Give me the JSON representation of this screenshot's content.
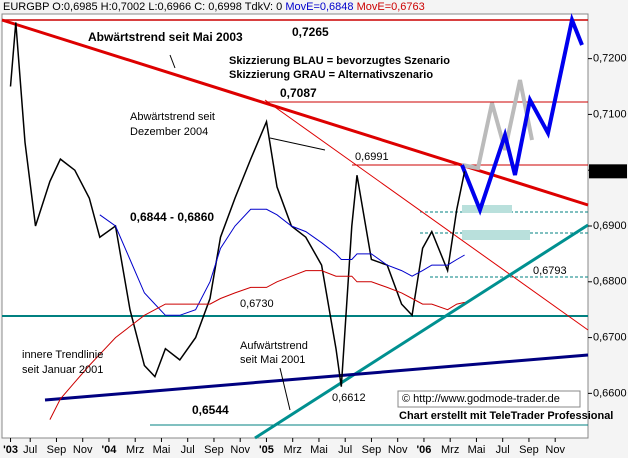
{
  "chart_data": {
    "type": "line",
    "header": [
      "EURGBP O:0,6985 H:0,7002 L:0,6966 C: 0,6998 TdkV: 0",
      "MovE=0,6848",
      "MovE=0,6763"
    ],
    "last_price_label": "0,6998",
    "annotations": [
      "Abwärtstrend seit Mai 2003",
      "0,7265",
      "0,7087",
      "Abwärtstrend seit",
      "Dezember 2004",
      "0,6991",
      "Skizzierung BLAU = bevorzugtes Szenario",
      "Skizzierung GRAU = Alternativszenario",
      "0,6844 - 0,6860",
      "0,6793",
      "0,6730",
      "Aufwärtstrend",
      "seit Mai 2001",
      "innere Trendlinie",
      "seit Januar 2001",
      "0,6612",
      "0,6544",
      "© http://www.godmode-trader.de",
      "Chart erstellt mit TeleTrader Professional"
    ],
    "x": [
      4.5,
      4.9,
      5.6,
      6.4,
      7.5,
      8.3,
      9.4,
      10.5,
      11.3,
      12.5,
      13.6,
      14.7,
      15.5,
      16.3,
      17.4,
      18.6,
      19.7,
      20.5,
      21.6,
      22.8,
      24,
      24.8,
      25.9,
      27,
      28.2,
      29.3,
      29.7,
      30.5,
      30.9,
      32,
      33.2,
      34.3,
      35.1,
      35.9,
      36.6,
      37.8,
      38.5,
      39.1
    ],
    "series": [
      {
        "name": "EURGBP",
        "color": "#000000",
        "values": [
          0.715,
          0.7265,
          0.705,
          0.69,
          0.698,
          0.702,
          0.7,
          0.695,
          0.688,
          0.69,
          0.675,
          0.665,
          0.663,
          0.668,
          0.666,
          0.67,
          0.677,
          0.688,
          0.695,
          0.702,
          0.7087,
          0.697,
          0.69,
          0.688,
          0.683,
          0.668,
          0.6612,
          0.69,
          0.6991,
          0.684,
          0.683,
          0.676,
          0.674,
          0.686,
          0.689,
          0.682,
          0.693,
          0.6998
        ]
      },
      {
        "name": "MovE blau",
        "color": "#0000cc",
        "values": [
          null,
          null,
          null,
          null,
          null,
          null,
          null,
          null,
          0.692,
          0.69,
          0.684,
          0.678,
          0.676,
          0.674,
          0.674,
          0.675,
          0.68,
          0.686,
          0.69,
          0.693,
          0.693,
          0.692,
          0.69,
          0.689,
          0.687,
          0.685,
          0.684,
          0.684,
          0.685,
          0.685,
          0.683,
          0.682,
          0.681,
          0.682,
          0.683,
          0.683,
          0.684,
          0.6848
        ]
      },
      {
        "name": "MovE rot",
        "color": "#cc0000",
        "values": [
          null,
          null,
          null,
          null,
          0.6553,
          0.659,
          0.662,
          0.665,
          0.667,
          0.67,
          0.672,
          0.674,
          0.675,
          0.676,
          0.676,
          0.676,
          0.676,
          0.677,
          0.678,
          0.679,
          0.679,
          0.68,
          0.681,
          0.682,
          0.682,
          0.681,
          0.681,
          0.681,
          0.68,
          0.68,
          0.679,
          0.678,
          0.677,
          0.676,
          0.676,
          0.675,
          0.676,
          0.6763
        ]
      }
    ],
    "xlim": [
      3.85,
      48.5
    ],
    "xticks": [
      {
        "value": 4.5,
        "label": "'03"
      },
      {
        "value": 6,
        "label": "Jul"
      },
      {
        "value": 8,
        "label": "Sep"
      },
      {
        "value": 10,
        "label": "Nov"
      },
      {
        "value": 12,
        "label": "'04"
      },
      {
        "value": 14,
        "label": "Mrz"
      },
      {
        "value": 16,
        "label": "Mai"
      },
      {
        "value": 18,
        "label": "Jul"
      },
      {
        "value": 20,
        "label": "Sep"
      },
      {
        "value": 22,
        "label": "Nov"
      },
      {
        "value": 24,
        "label": "'05"
      },
      {
        "value": 26,
        "label": "Mrz"
      },
      {
        "value": 28,
        "label": "Mai"
      },
      {
        "value": 30,
        "label": "Jul"
      },
      {
        "value": 32,
        "label": "Sep"
      },
      {
        "value": 34,
        "label": "Nov"
      },
      {
        "value": 36,
        "label": "'06"
      },
      {
        "value": 38,
        "label": "Mrz"
      },
      {
        "value": 40,
        "label": "Mai"
      },
      {
        "value": 42,
        "label": "Jul"
      },
      {
        "value": 44,
        "label": "Sep"
      },
      {
        "value": 46,
        "label": "Nov"
      }
    ],
    "ylim": [
      0.652,
      0.728
    ],
    "yticks": [
      {
        "value": 0.66,
        "label": "0,6600"
      },
      {
        "value": 0.67,
        "label": "0,6700"
      },
      {
        "value": 0.68,
        "label": "0,6800"
      },
      {
        "value": 0.69,
        "label": "0,6900"
      },
      {
        "value": 0.7,
        "label": "0,7000"
      },
      {
        "value": 0.71,
        "label": "0,7100"
      },
      {
        "value": 0.72,
        "label": "0,7200"
      }
    ]
  }
}
